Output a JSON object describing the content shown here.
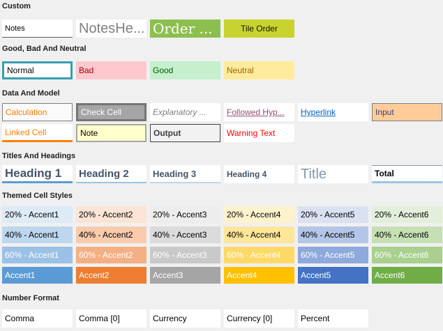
{
  "page": {
    "background": "#f0f0f0",
    "selection_border": "#379FB0"
  },
  "sections": [
    {
      "label": "Custom",
      "rows": [
        [
          {
            "label": "Notes",
            "classes": "v-xs",
            "css": {
              "background": "#ffffff",
              "borderBottom": "1px solid #595959"
            }
          },
          {
            "label": "NotesHe...",
            "classes": "v-xl",
            "css": {
              "background": "#ffffff",
              "color": "#808080"
            }
          },
          {
            "label": "Order ...",
            "classes": "v-xl v-serif",
            "css": {
              "background": "#8CBF4E",
              "color": "#ffffff"
            }
          },
          {
            "label": "Tile Order",
            "classes": "v-center",
            "css": {
              "background": "#C8D32F",
              "color": "#141400"
            }
          }
        ]
      ]
    },
    {
      "label": "Good, Bad And Neutral",
      "rows": [
        [
          {
            "label": "Normal",
            "selected": true,
            "css": {
              "background": "#ffffff",
              "border": "3px solid #379FB0"
            }
          },
          {
            "label": "Bad",
            "css": {
              "background": "#FFC7CE",
              "color": "#9C0006"
            }
          },
          {
            "label": "Good",
            "css": {
              "background": "#C6EFCE",
              "color": "#006100"
            }
          },
          {
            "label": "Neutral",
            "css": {
              "background": "#FFEB9C",
              "color": "#9C6500"
            }
          }
        ]
      ]
    },
    {
      "label": "Data And Model",
      "rows": [
        [
          {
            "label": "Calculation",
            "css": {
              "background": "#FAFAFA",
              "color": "#FA7D00",
              "border": "1px solid #7F7F7F"
            }
          },
          {
            "label": "Check Cell",
            "css": {
              "background": "#A5A5A5",
              "color": "#FFFFFF",
              "border": "3px solid #757575"
            }
          },
          {
            "label": "Explanatory ...",
            "classes": "v-italic",
            "css": {
              "background": "#FFFFFF",
              "color": "#7F7F7F"
            }
          },
          {
            "label": "Followed Hyp...",
            "classes": "v-underline",
            "css": {
              "background": "#FFFFFF",
              "color": "#954F72"
            }
          },
          {
            "label": "Hyperlink",
            "classes": "v-underline",
            "css": {
              "background": "#FFFFFF",
              "color": "#0563C1"
            }
          },
          {
            "label": "Input",
            "css": {
              "background": "#FFCC99",
              "color": "#3F3F76",
              "border": "1px solid #7F7F7F"
            }
          }
        ],
        [
          {
            "label": "Linked Cell",
            "css": {
              "background": "#FFFFFF",
              "color": "#FA7D00",
              "borderBottom": "3px solid #FF8001"
            }
          },
          {
            "label": "Note",
            "css": {
              "background": "#FFFFCC",
              "border": "2px solid #A6A6A6"
            }
          },
          {
            "label": "Output",
            "classes": "v-bold",
            "css": {
              "background": "#F2F2F2",
              "color": "#3F3F3F",
              "border": "1px solid #3F3F3F"
            }
          },
          {
            "label": "Warning Text",
            "css": {
              "background": "#FFFFFF",
              "color": "#FF0000"
            }
          }
        ]
      ]
    },
    {
      "label": "Titles And Headings",
      "rows": [
        [
          {
            "label": "Heading 1",
            "classes": "v-h1",
            "css": {
              "background": "#FFFFFF",
              "color": "#44546A",
              "borderBottom": "3px solid #5B9BD5"
            }
          },
          {
            "label": "Heading 2",
            "classes": "v-h2",
            "css": {
              "background": "#FFFFFF",
              "color": "#44546A",
              "borderBottom": "2px solid #9BC2E6"
            }
          },
          {
            "label": "Heading 3",
            "classes": "v-h3",
            "css": {
              "background": "#FFFFFF",
              "color": "#44546A",
              "borderBottom": "2px solid #BDD7EE"
            }
          },
          {
            "label": "Heading 4",
            "classes": "v-h4",
            "css": {
              "background": "#FFFFFF",
              "color": "#44546A"
            }
          },
          {
            "label": "Title",
            "classes": "v-title",
            "css": {
              "background": "#FFFFFF",
              "color": "#8497AD"
            }
          },
          {
            "label": "Total",
            "classes": "v-bold",
            "css": {
              "background": "#FFFFFF",
              "color": "#000000",
              "borderTop": "1px solid #8496AB",
              "borderBottom": "3px solid #9DC3E6"
            }
          }
        ]
      ]
    },
    {
      "label": "Themed Cell Styles",
      "rows": [
        [
          {
            "label": "20% - Accent1",
            "css": {
              "background": "#DDEBF7"
            }
          },
          {
            "label": "20% - Accent2",
            "css": {
              "background": "#FCE4D6"
            }
          },
          {
            "label": "20% - Accent3",
            "css": {
              "background": "#EDEDED"
            }
          },
          {
            "label": "20% - Accent4",
            "css": {
              "background": "#FFF2CC"
            }
          },
          {
            "label": "20% - Accent5",
            "css": {
              "background": "#D9E1F2"
            }
          },
          {
            "label": "20% - Accent6",
            "css": {
              "background": "#E2EFDA"
            }
          }
        ],
        [
          {
            "label": "40% - Accent1",
            "css": {
              "background": "#BDD7EE"
            }
          },
          {
            "label": "40% - Accent2",
            "css": {
              "background": "#F8CBAD"
            }
          },
          {
            "label": "40% - Accent3",
            "css": {
              "background": "#DBDBDB"
            }
          },
          {
            "label": "40% - Accent4",
            "css": {
              "background": "#FFE699"
            }
          },
          {
            "label": "40% - Accent5",
            "css": {
              "background": "#B4C6E7"
            }
          },
          {
            "label": "40% - Accent6",
            "css": {
              "background": "#C6E0B4"
            }
          }
        ],
        [
          {
            "label": "60% - Accent1",
            "css": {
              "background": "#9BC2E6",
              "color": "#FFFFFF"
            }
          },
          {
            "label": "60% - Accent2",
            "css": {
              "background": "#F4B084",
              "color": "#FFFFFF"
            }
          },
          {
            "label": "60% - Accent3",
            "css": {
              "background": "#C9C9C9",
              "color": "#FFFFFF"
            }
          },
          {
            "label": "60% - Accent4",
            "css": {
              "background": "#FFD966",
              "color": "#FFFFFF"
            }
          },
          {
            "label": "60% - Accent5",
            "css": {
              "background": "#8EA9DB",
              "color": "#FFFFFF"
            }
          },
          {
            "label": "60% - Accent6",
            "css": {
              "background": "#A9D08E",
              "color": "#FFFFFF"
            }
          }
        ],
        [
          {
            "label": "Accent1",
            "css": {
              "background": "#5B9BD5",
              "color": "#FFFFFF"
            }
          },
          {
            "label": "Accent2",
            "css": {
              "background": "#ED7D31",
              "color": "#FFFFFF"
            }
          },
          {
            "label": "Accent3",
            "css": {
              "background": "#A5A5A5",
              "color": "#FFFFFF"
            }
          },
          {
            "label": "Accent4",
            "css": {
              "background": "#FFC000",
              "color": "#FFFFFF"
            }
          },
          {
            "label": "Accent5",
            "css": {
              "background": "#4472C4",
              "color": "#FFFFFF"
            }
          },
          {
            "label": "Accent6",
            "css": {
              "background": "#70AD47",
              "color": "#FFFFFF"
            }
          }
        ]
      ]
    },
    {
      "label": "Number Format",
      "rows": [
        [
          {
            "label": "Comma",
            "css": {
              "background": "#FFFFFF"
            }
          },
          {
            "label": "Comma [0]",
            "css": {
              "background": "#FFFFFF"
            }
          },
          {
            "label": "Currency",
            "css": {
              "background": "#FFFFFF"
            }
          },
          {
            "label": "Currency [0]",
            "css": {
              "background": "#FFFFFF"
            }
          },
          {
            "label": "Percent",
            "css": {
              "background": "#FFFFFF"
            }
          }
        ]
      ]
    }
  ]
}
